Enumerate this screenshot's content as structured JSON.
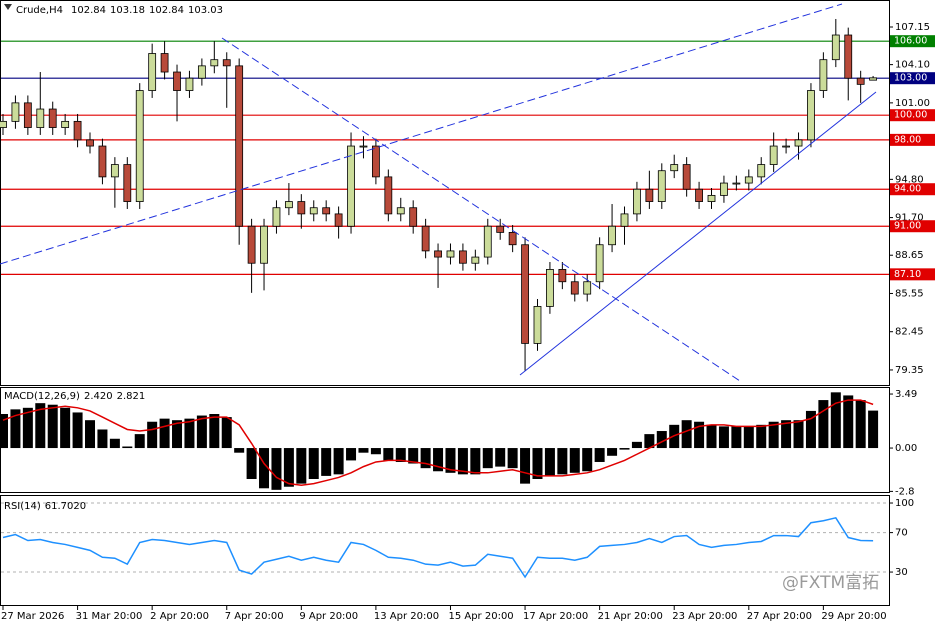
{
  "chart_data": [
    {
      "type": "candlestick",
      "title": "Crude,H4",
      "ohlc_readout": [
        102.84,
        103.18,
        102.84,
        103.03
      ],
      "categories": [
        "27 Mar 2026",
        null,
        null,
        null,
        null,
        null,
        "31 Mar 20:00",
        null,
        null,
        null,
        null,
        null,
        "2 Apr 20:00",
        null,
        null,
        null,
        null,
        null,
        "7 Apr 20:00",
        null,
        null,
        null,
        null,
        null,
        "9 Apr 20:00",
        null,
        null,
        null,
        null,
        null,
        "13 Apr 20:00",
        null,
        null,
        null,
        null,
        null,
        "15 Apr 20:00",
        null,
        null,
        null,
        null,
        null,
        "17 Apr 20:00",
        null,
        null,
        null,
        null,
        null,
        "21 Apr 20:00",
        null,
        null,
        null,
        null,
        null,
        "23 Apr 20:00",
        null,
        null,
        null,
        null,
        null,
        "27 Apr 20:00",
        null,
        null,
        null,
        null,
        null,
        "29 Apr 20:00",
        null,
        null,
        null,
        null
      ],
      "open": [
        99.0,
        99.5,
        101,
        99,
        100.5,
        99,
        99.5,
        98,
        97.5,
        95,
        96,
        93,
        102,
        105,
        103.5,
        102,
        103,
        104,
        104.5,
        104,
        91,
        88,
        91,
        92.5,
        93,
        92,
        92.5,
        92,
        91,
        97.5,
        97.5,
        95,
        92,
        92.5,
        91,
        89,
        88.5,
        89,
        88,
        88.5,
        91,
        90.5,
        89.5,
        81.5,
        84.5,
        87.5,
        86.5,
        85.5,
        86.5,
        89.5,
        91,
        92,
        94,
        93,
        95.5,
        96,
        94,
        93,
        93.5,
        94.5,
        94.5,
        95,
        96,
        97.5,
        97.5,
        98,
        102,
        104.5,
        106.5,
        103,
        102.84
      ],
      "high": [
        100.1,
        101.6,
        101.6,
        103.5,
        101.1,
        100.1,
        100.1,
        98.6,
        98.1,
        96.6,
        96.6,
        102.6,
        105.8,
        106.0,
        104.1,
        103.6,
        104.6,
        106.0,
        105.1,
        104.6,
        91.6,
        91.6,
        93.1,
        94.5,
        93.6,
        93.1,
        93.1,
        92.6,
        98.6,
        98.3,
        98.1,
        95.6,
        93.3,
        93.1,
        91.6,
        89.6,
        89.6,
        89.6,
        89.1,
        91.6,
        91.6,
        91.1,
        90.1,
        85.1,
        88.1,
        88.1,
        87.1,
        87.1,
        90.1,
        92.8,
        92.6,
        94.6,
        95.5,
        96.1,
        96.8,
        96.6,
        94.6,
        94.1,
        95.1,
        95.1,
        95.6,
        96.6,
        98.6,
        98.1,
        98.6,
        102.6,
        105.1,
        107.8,
        107.1,
        103.6,
        103.18
      ],
      "low": [
        98.4,
        98.9,
        98.4,
        98.4,
        98.4,
        98.4,
        97.4,
        96.9,
        94.4,
        92.5,
        92.4,
        92.4,
        101.4,
        102.9,
        99.5,
        101.4,
        102.4,
        103.4,
        100.6,
        89.5,
        85.6,
        85.8,
        90.4,
        91.9,
        90.8,
        91.4,
        91.4,
        90.0,
        90.4,
        96.5,
        94.4,
        91.4,
        91.4,
        90.4,
        88.4,
        86.0,
        87.9,
        87.4,
        87.4,
        87.9,
        89.9,
        88.9,
        79.3,
        80.9,
        83.9,
        85.9,
        84.9,
        84.9,
        85.9,
        88.9,
        89.5,
        91.4,
        92.4,
        92.4,
        94.9,
        93.4,
        92.4,
        92.4,
        92.9,
        93.9,
        93.9,
        94.4,
        95.4,
        96.9,
        96.4,
        97.4,
        101.4,
        103.9,
        101.2,
        101.0,
        102.84
      ],
      "close": [
        99.5,
        101,
        99,
        100.5,
        99,
        99.5,
        98,
        97.5,
        95,
        96,
        93,
        102,
        105,
        103.5,
        102,
        103,
        104,
        104.5,
        104,
        91,
        88,
        91,
        92.5,
        93,
        92,
        92.5,
        92,
        91,
        97.5,
        97.5,
        95,
        92,
        92.5,
        91,
        89,
        88.5,
        89,
        88,
        88.5,
        91,
        90.5,
        89.5,
        81.5,
        84.5,
        87.5,
        86.5,
        85.5,
        86.5,
        89.5,
        91,
        92,
        94,
        93,
        95.5,
        96,
        94,
        93,
        93.5,
        94.5,
        94.5,
        95,
        96,
        97.5,
        97.5,
        98,
        102,
        104.5,
        106.5,
        103,
        102.5,
        103.03
      ],
      "up_color": "#cbdc9a",
      "down_color": "#b84a3a",
      "ylim": [
        78.13,
        108.69
      ],
      "yticks": [
        107.15,
        {
          "value": 104.1,
          "label": "104.10"
        },
        {
          "value": 101,
          "label": "101.00"
        },
        {
          "value": 94.8,
          "label": "94.80"
        },
        {
          "value": 91.7,
          "label": "91.70"
        },
        88.65,
        85.55,
        82.45,
        79.35
      ],
      "levels": [
        {
          "value": 106,
          "label": "106.00",
          "color": "#008000"
        },
        {
          "value": 103,
          "label": "103.00",
          "color": "#000080"
        },
        {
          "value": 100,
          "label": "100.00",
          "color": "#e00000"
        },
        {
          "value": 98,
          "label": "98.00",
          "color": "#e00000"
        },
        {
          "value": 94,
          "label": "94.00",
          "color": "#e00000"
        },
        {
          "value": 91,
          "label": "91.00",
          "color": "#e00000"
        },
        {
          "value": 87.1,
          "label": "87.10",
          "color": "#e00000"
        }
      ],
      "watermark": "@FXTM富拓"
    },
    {
      "type": "macd",
      "title": "MACD(12,26,9)",
      "readout": {
        "values": [
          2.42,
          2.821
        ],
        "value_labels": [
          "2.420",
          "2.821"
        ]
      },
      "histogram": [
        2.2,
        2.5,
        2.6,
        2.9,
        2.8,
        2.6,
        2.3,
        1.8,
        1.2,
        0.6,
        0.1,
        0.9,
        1.7,
        1.9,
        1.8,
        1.9,
        2.1,
        2.2,
        2.0,
        -0.3,
        -2.0,
        -2.6,
        -2.7,
        -2.5,
        -2.3,
        -2.0,
        -1.8,
        -1.7,
        -0.8,
        -0.3,
        -0.4,
        -0.8,
        -0.9,
        -1.0,
        -1.3,
        -1.5,
        -1.6,
        -1.7,
        -1.7,
        -1.3,
        -1.2,
        -1.3,
        -2.3,
        -2.0,
        -1.8,
        -1.7,
        -1.6,
        -1.5,
        -0.9,
        -0.5,
        -0.1,
        0.4,
        0.9,
        1.1,
        1.5,
        1.8,
        1.7,
        1.5,
        1.4,
        1.4,
        1.4,
        1.5,
        1.7,
        1.8,
        1.8,
        2.4,
        3.1,
        3.6,
        3.4,
        3.1,
        2.42
      ],
      "signal": [
        1.8,
        2.1,
        2.3,
        2.5,
        2.6,
        2.7,
        2.6,
        2.4,
        2.0,
        1.6,
        1.2,
        1.1,
        1.2,
        1.4,
        1.6,
        1.7,
        1.9,
        2.0,
        2.0,
        1.5,
        0.3,
        -1.0,
        -1.9,
        -2.3,
        -2.4,
        -2.3,
        -2.1,
        -1.9,
        -1.6,
        -1.2,
        -0.9,
        -0.8,
        -0.8,
        -0.9,
        -1.0,
        -1.2,
        -1.4,
        -1.5,
        -1.6,
        -1.6,
        -1.5,
        -1.4,
        -1.6,
        -1.8,
        -1.8,
        -1.8,
        -1.7,
        -1.6,
        -1.4,
        -1.1,
        -0.8,
        -0.4,
        0.0,
        0.4,
        0.8,
        1.1,
        1.4,
        1.5,
        1.5,
        1.4,
        1.4,
        1.4,
        1.5,
        1.6,
        1.7,
        1.9,
        2.4,
        2.9,
        3.1,
        3.1,
        2.821
      ],
      "histogram_color": "#000000",
      "signal_color": "#e00000",
      "ylim": [
        -2.84,
        3.88
      ],
      "yticks": [
        3.49,
        {
          "value": 0,
          "label": "0.00"
        },
        -2.8
      ]
    },
    {
      "type": "line",
      "title": "RSI(14)",
      "readout": {
        "values": [
          61.702
        ],
        "value_labels": [
          "61.7020"
        ]
      },
      "values": [
        65,
        68,
        62,
        63,
        60,
        58,
        55,
        52,
        45,
        44,
        38,
        60,
        63,
        62,
        60,
        58,
        60,
        62,
        60,
        32,
        28,
        40,
        43,
        46,
        42,
        45,
        42,
        40,
        60,
        58,
        52,
        45,
        44,
        42,
        38,
        37,
        40,
        36,
        37,
        48,
        46,
        44,
        25,
        45,
        44,
        44,
        42,
        45,
        56,
        57,
        58,
        60,
        64,
        60,
        66,
        67,
        58,
        55,
        57,
        58,
        60,
        61,
        67,
        67,
        66,
        80,
        82,
        85,
        65,
        62,
        61.702
      ],
      "color": "#1e90ff",
      "ylim": [
        -3.4,
        106.1
      ],
      "yticks": [
        100,
        70,
        30
      ],
      "grid": true
    }
  ]
}
